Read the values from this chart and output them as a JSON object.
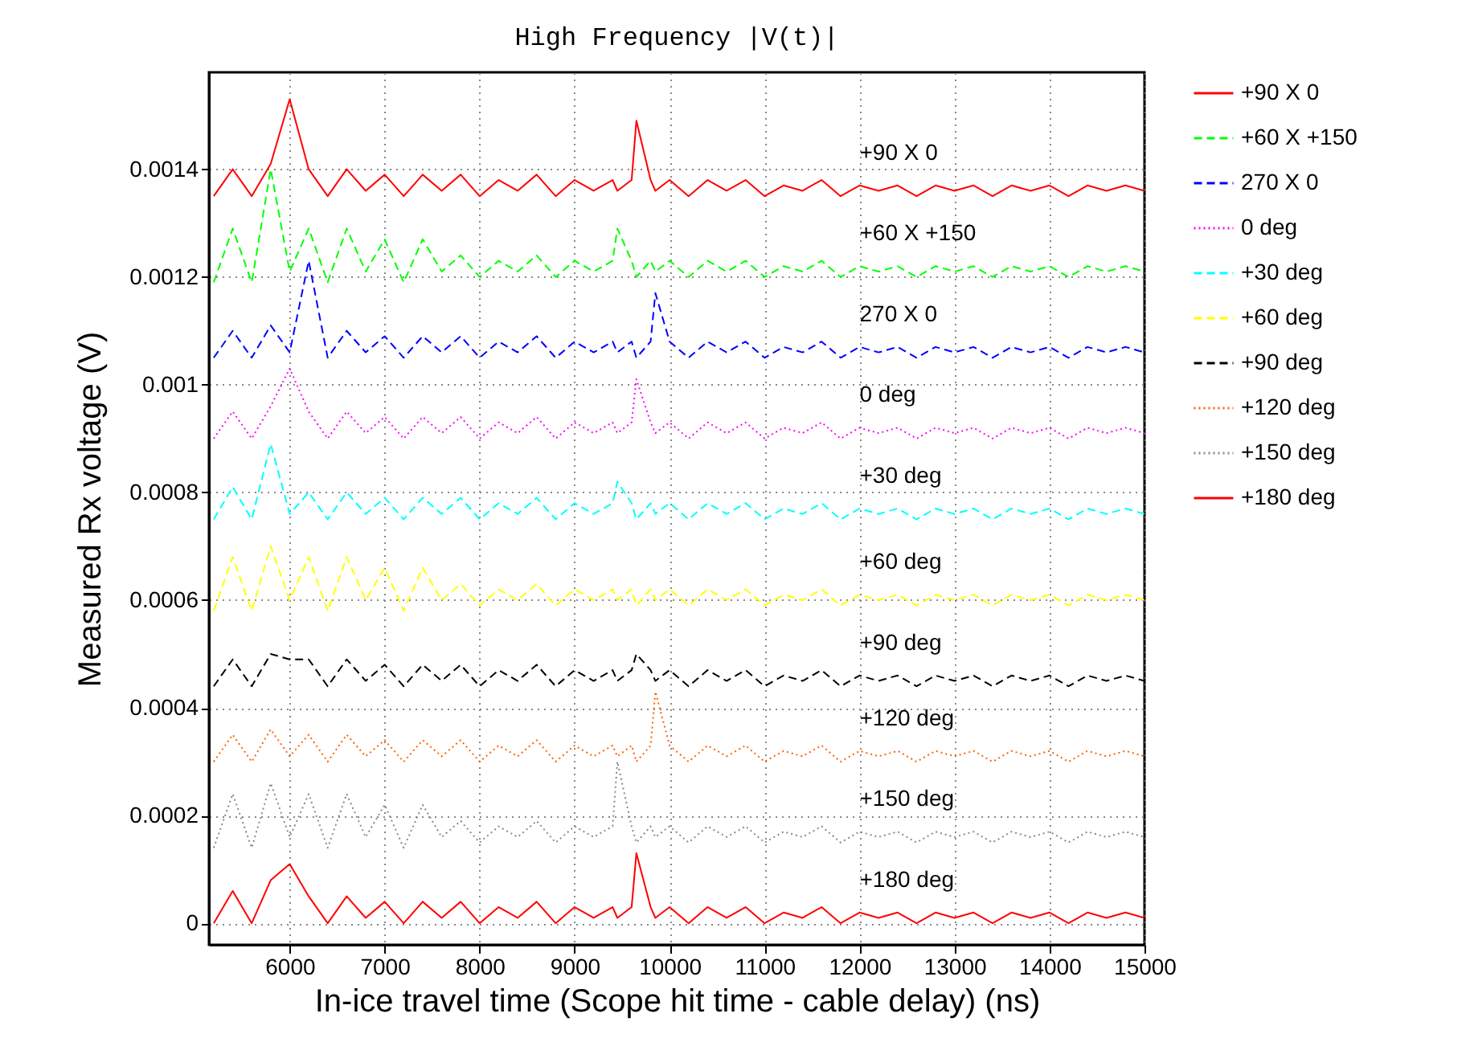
{
  "chart_data": {
    "type": "line",
    "title": "High Frequency |V(t)|",
    "xlabel": "In-ice travel time (Scope hit time - cable delay) (ns)",
    "ylabel": "Measured Rx voltage (V)",
    "x": [
      5200,
      5400,
      5600,
      5800,
      6000,
      6200,
      6400,
      6600,
      6800,
      7000,
      7200,
      7400,
      7600,
      7800,
      8000,
      8200,
      8400,
      8600,
      8800,
      9000,
      9200,
      9400,
      9450,
      9600,
      9650,
      9800,
      9850,
      10000,
      10200,
      10400,
      10600,
      10800,
      11000,
      11200,
      11400,
      11600,
      11800,
      12000,
      12200,
      12400,
      12600,
      12800,
      13000,
      13200,
      13400,
      13600,
      13800,
      14000,
      14200,
      14400,
      14600,
      14800,
      15000
    ],
    "xlim": [
      5150,
      15000
    ],
    "xticks": [
      6000,
      7000,
      8000,
      9000,
      10000,
      11000,
      12000,
      13000,
      14000,
      15000
    ],
    "ylim": [
      -4e-05,
      0.00158
    ],
    "yticks": [
      0,
      0.0002,
      0.0004,
      0.0006,
      0.0008,
      0.001,
      0.0012,
      0.0014
    ],
    "grid": true,
    "legend": "right",
    "series": [
      {
        "name": "+90 X 0",
        "color": "#ff0000",
        "line_style": "solid",
        "values": [
          0.00135,
          0.0014,
          0.00135,
          0.00141,
          0.00153,
          0.0014,
          0.00135,
          0.0014,
          0.00136,
          0.00139,
          0.00135,
          0.00139,
          0.00136,
          0.00139,
          0.00135,
          0.00138,
          0.00136,
          0.00139,
          0.00135,
          0.00138,
          0.00136,
          0.00138,
          0.00136,
          0.00138,
          0.00149,
          0.00138,
          0.00136,
          0.00138,
          0.00135,
          0.00138,
          0.00136,
          0.00138,
          0.00135,
          0.00137,
          0.00136,
          0.00138,
          0.00135,
          0.00137,
          0.00136,
          0.00137,
          0.00135,
          0.00137,
          0.00136,
          0.00137,
          0.00135,
          0.00137,
          0.00136,
          0.00137,
          0.00135,
          0.00137,
          0.00136,
          0.00137,
          0.00136
        ]
      },
      {
        "name": "+60 X +150",
        "color": "#00ff00",
        "line_style": "dashed",
        "values": [
          0.00119,
          0.00129,
          0.00119,
          0.0014,
          0.00121,
          0.00129,
          0.00119,
          0.00129,
          0.00121,
          0.00127,
          0.00119,
          0.00127,
          0.00121,
          0.00124,
          0.0012,
          0.00123,
          0.00121,
          0.00124,
          0.0012,
          0.00123,
          0.00121,
          0.00123,
          0.00129,
          0.00123,
          0.0012,
          0.00123,
          0.00121,
          0.00123,
          0.0012,
          0.00123,
          0.00121,
          0.00123,
          0.0012,
          0.00122,
          0.00121,
          0.00123,
          0.0012,
          0.00122,
          0.00121,
          0.00122,
          0.0012,
          0.00122,
          0.00121,
          0.00122,
          0.0012,
          0.00122,
          0.00121,
          0.00122,
          0.0012,
          0.00122,
          0.00121,
          0.00122,
          0.00121
        ]
      },
      {
        "name": "270 X 0",
        "color": "#0000ff",
        "line_style": "dashed",
        "values": [
          0.00105,
          0.0011,
          0.00105,
          0.00111,
          0.00106,
          0.00123,
          0.00105,
          0.0011,
          0.00106,
          0.00109,
          0.00105,
          0.00109,
          0.00106,
          0.00109,
          0.00105,
          0.00108,
          0.00106,
          0.00109,
          0.00105,
          0.00108,
          0.00106,
          0.00108,
          0.00106,
          0.00108,
          0.00105,
          0.00108,
          0.00117,
          0.00108,
          0.00105,
          0.00108,
          0.00106,
          0.00108,
          0.00105,
          0.00107,
          0.00106,
          0.00108,
          0.00105,
          0.00107,
          0.00106,
          0.00107,
          0.00105,
          0.00107,
          0.00106,
          0.00107,
          0.00105,
          0.00107,
          0.00106,
          0.00107,
          0.00105,
          0.00107,
          0.00106,
          0.00107,
          0.00106
        ]
      },
      {
        "name": "0 deg",
        "color": "#ff00ff",
        "line_style": "dotted",
        "values": [
          0.0009,
          0.00095,
          0.0009,
          0.00096,
          0.00103,
          0.00095,
          0.0009,
          0.00095,
          0.00091,
          0.00094,
          0.0009,
          0.00094,
          0.00091,
          0.00094,
          0.0009,
          0.00093,
          0.00091,
          0.00094,
          0.0009,
          0.00093,
          0.00091,
          0.00093,
          0.00091,
          0.00093,
          0.00101,
          0.00093,
          0.00091,
          0.00093,
          0.0009,
          0.00093,
          0.00091,
          0.00093,
          0.0009,
          0.00092,
          0.00091,
          0.00093,
          0.0009,
          0.00092,
          0.00091,
          0.00092,
          0.0009,
          0.00092,
          0.00091,
          0.00092,
          0.0009,
          0.00092,
          0.00091,
          0.00092,
          0.0009,
          0.00092,
          0.00091,
          0.00092,
          0.00091
        ]
      },
      {
        "name": "+30 deg",
        "color": "#00ffff",
        "line_style": "dashed",
        "values": [
          0.00075,
          0.00081,
          0.00075,
          0.00089,
          0.00076,
          0.0008,
          0.00075,
          0.0008,
          0.00076,
          0.00079,
          0.00075,
          0.00079,
          0.00076,
          0.00079,
          0.00075,
          0.00078,
          0.00076,
          0.00079,
          0.00075,
          0.00078,
          0.00076,
          0.00078,
          0.00082,
          0.00078,
          0.00075,
          0.00078,
          0.00076,
          0.00078,
          0.00075,
          0.00078,
          0.00076,
          0.00078,
          0.00075,
          0.00077,
          0.00076,
          0.00078,
          0.00075,
          0.00077,
          0.00076,
          0.00077,
          0.00075,
          0.00077,
          0.00076,
          0.00077,
          0.00075,
          0.00077,
          0.00076,
          0.00077,
          0.00075,
          0.00077,
          0.00076,
          0.00077,
          0.00076
        ]
      },
      {
        "name": "+60 deg",
        "color": "#ffff00",
        "line_style": "dashed",
        "values": [
          0.00058,
          0.00068,
          0.00058,
          0.0007,
          0.0006,
          0.00068,
          0.00058,
          0.00068,
          0.0006,
          0.00066,
          0.00058,
          0.00066,
          0.0006,
          0.00063,
          0.00059,
          0.00062,
          0.0006,
          0.00063,
          0.00059,
          0.00062,
          0.0006,
          0.00062,
          0.0006,
          0.00062,
          0.00059,
          0.00062,
          0.0006,
          0.00062,
          0.00059,
          0.00062,
          0.0006,
          0.00062,
          0.00059,
          0.00061,
          0.0006,
          0.00062,
          0.00059,
          0.00061,
          0.0006,
          0.00061,
          0.00059,
          0.00061,
          0.0006,
          0.00061,
          0.00059,
          0.00061,
          0.0006,
          0.00061,
          0.00059,
          0.00061,
          0.0006,
          0.00061,
          0.0006
        ]
      },
      {
        "name": "+90 deg",
        "color": "#000000",
        "line_style": "dashed",
        "values": [
          0.00044,
          0.00049,
          0.00044,
          0.0005,
          0.00049,
          0.00049,
          0.00044,
          0.00049,
          0.00045,
          0.00048,
          0.00044,
          0.00048,
          0.00045,
          0.00048,
          0.00044,
          0.00047,
          0.00045,
          0.00048,
          0.00044,
          0.00047,
          0.00045,
          0.00047,
          0.00045,
          0.00047,
          0.0005,
          0.00047,
          0.00045,
          0.00047,
          0.00044,
          0.00047,
          0.00045,
          0.00047,
          0.00044,
          0.00046,
          0.00045,
          0.00047,
          0.00044,
          0.00046,
          0.00045,
          0.00046,
          0.00044,
          0.00046,
          0.00045,
          0.00046,
          0.00044,
          0.00046,
          0.00045,
          0.00046,
          0.00044,
          0.00046,
          0.00045,
          0.00046,
          0.00045
        ]
      },
      {
        "name": "+120 deg",
        "color": "#ff6000",
        "line_style": "dotted",
        "values": [
          0.0003,
          0.00035,
          0.0003,
          0.00036,
          0.00031,
          0.00035,
          0.0003,
          0.00035,
          0.00031,
          0.00034,
          0.0003,
          0.00034,
          0.00031,
          0.00034,
          0.0003,
          0.00033,
          0.00031,
          0.00034,
          0.0003,
          0.00033,
          0.00031,
          0.00033,
          0.00031,
          0.00033,
          0.0003,
          0.00033,
          0.00043,
          0.00033,
          0.0003,
          0.00033,
          0.00031,
          0.00033,
          0.0003,
          0.00032,
          0.00031,
          0.00033,
          0.0003,
          0.00032,
          0.00031,
          0.00032,
          0.0003,
          0.00032,
          0.00031,
          0.00032,
          0.0003,
          0.00032,
          0.00031,
          0.00032,
          0.0003,
          0.00032,
          0.00031,
          0.00032,
          0.00031
        ]
      },
      {
        "name": "+150 deg",
        "color": "#888888",
        "line_style": "dotted",
        "values": [
          0.00014,
          0.00024,
          0.00014,
          0.00026,
          0.00016,
          0.00024,
          0.00014,
          0.00024,
          0.00016,
          0.00022,
          0.00014,
          0.00022,
          0.00016,
          0.00019,
          0.00015,
          0.00018,
          0.00016,
          0.00019,
          0.00015,
          0.00018,
          0.00016,
          0.00018,
          0.0003,
          0.00018,
          0.00015,
          0.00018,
          0.00016,
          0.00018,
          0.00015,
          0.00018,
          0.00016,
          0.00018,
          0.00015,
          0.00017,
          0.00016,
          0.00018,
          0.00015,
          0.00017,
          0.00016,
          0.00017,
          0.00015,
          0.00017,
          0.00016,
          0.00017,
          0.00015,
          0.00017,
          0.00016,
          0.00017,
          0.00015,
          0.00017,
          0.00016,
          0.00017,
          0.00016
        ]
      },
      {
        "name": "+180 deg",
        "color": "#ff0000",
        "line_style": "solid",
        "values": [
          0,
          6e-05,
          0,
          8e-05,
          0.00011,
          5e-05,
          0,
          5e-05,
          1e-05,
          4e-05,
          0,
          4e-05,
          1e-05,
          4e-05,
          0,
          3e-05,
          1e-05,
          4e-05,
          0,
          3e-05,
          1e-05,
          3e-05,
          1e-05,
          3e-05,
          0.00013,
          3e-05,
          1e-05,
          3e-05,
          0,
          3e-05,
          1e-05,
          3e-05,
          0,
          2e-05,
          1e-05,
          3e-05,
          0,
          2e-05,
          1e-05,
          2e-05,
          0,
          2e-05,
          1e-05,
          2e-05,
          0,
          2e-05,
          1e-05,
          2e-05,
          0,
          2e-05,
          1e-05,
          2e-05,
          1e-05
        ]
      }
    ],
    "annotations": [
      "+90 X 0",
      "+60 X +150",
      "270 X 0",
      "0 deg",
      "+30 deg",
      "+60 deg",
      "+90 deg",
      "+120 deg",
      "+150 deg",
      "+180 deg"
    ]
  }
}
